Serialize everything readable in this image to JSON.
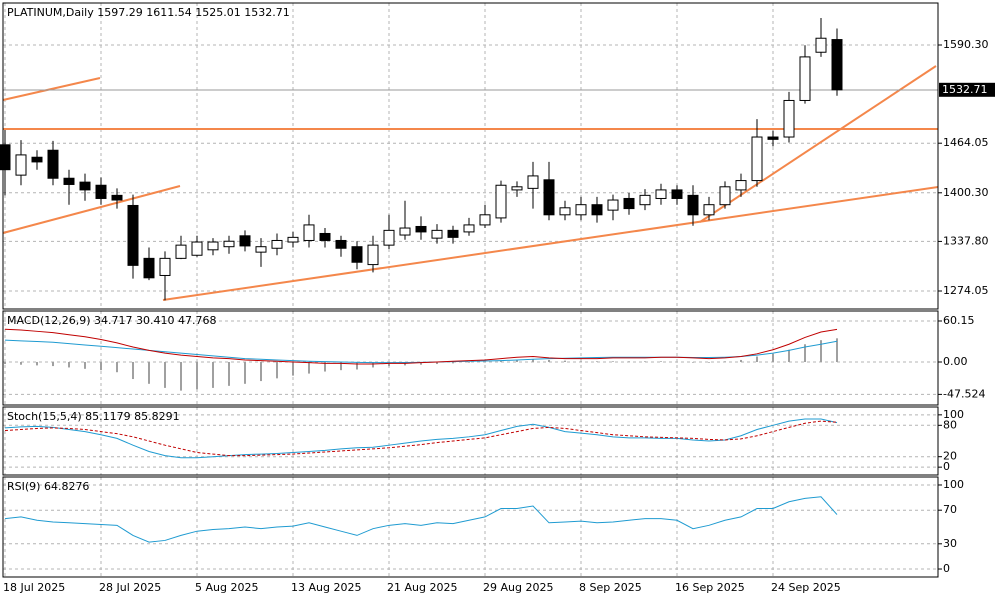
{
  "chart_data": [
    {
      "type": "candlestick",
      "title": "PLATINUM,Daily  1597.29 1611.54 1525.01 1532.71",
      "categories": [
        "18 Jul 2025",
        null,
        null,
        null,
        null,
        null,
        "28 Jul 2025",
        null,
        null,
        null,
        null,
        null,
        "5 Aug 2025",
        null,
        null,
        null,
        null,
        null,
        "13 Aug 2025",
        null,
        null,
        null,
        null,
        null,
        "21 Aug 2025",
        null,
        null,
        null,
        null,
        null,
        "29 Aug 2025",
        null,
        null,
        null,
        null,
        null,
        "8 Sep 2025",
        null,
        null,
        null,
        null,
        null,
        "16 Sep 2025",
        null,
        null,
        null,
        null,
        null,
        "24 Sep 2025",
        null,
        null,
        null,
        null
      ],
      "open": [
        1462,
        1423,
        1446,
        1455,
        1419,
        1414,
        1410,
        1397,
        1384,
        1316,
        1294,
        1316,
        1320,
        1327,
        1331,
        1345,
        1324,
        1329,
        1337,
        1339,
        1348,
        1339,
        1331,
        1308,
        1333,
        1346,
        1357,
        1342,
        1352,
        1350,
        1359,
        1368,
        1404,
        1406,
        1417,
        1372,
        1372,
        1385,
        1378,
        1393,
        1385,
        1393,
        1404,
        1397,
        1372,
        1385,
        1404,
        1416,
        1472,
        1472,
        1519,
        1581,
        1597.29
      ],
      "high": [
        1481,
        1468,
        1455,
        1467,
        1430,
        1425,
        1420,
        1406,
        1398,
        1330,
        1325,
        1345,
        1345,
        1342,
        1345,
        1352,
        1342,
        1348,
        1350,
        1372,
        1355,
        1345,
        1338,
        1345,
        1372,
        1390,
        1370,
        1360,
        1358,
        1368,
        1385,
        1416,
        1415,
        1440,
        1440,
        1390,
        1395,
        1395,
        1398,
        1400,
        1405,
        1412,
        1410,
        1410,
        1395,
        1415,
        1425,
        1495,
        1480,
        1530,
        1590,
        1625,
        1611.54
      ],
      "low": [
        1397,
        1410,
        1430,
        1410,
        1385,
        1390,
        1385,
        1380,
        1290,
        1288,
        1262,
        1315,
        1318,
        1320,
        1322,
        1325,
        1305,
        1320,
        1330,
        1330,
        1330,
        1318,
        1302,
        1298,
        1328,
        1340,
        1340,
        1335,
        1335,
        1345,
        1355,
        1362,
        1395,
        1380,
        1365,
        1365,
        1365,
        1362,
        1365,
        1372,
        1378,
        1385,
        1385,
        1358,
        1365,
        1380,
        1395,
        1408,
        1460,
        1465,
        1515,
        1575,
        1525.01
      ],
      "close": [
        1430,
        1449,
        1440,
        1419,
        1411,
        1404,
        1393,
        1391,
        1307,
        1291,
        1316,
        1333,
        1337,
        1337,
        1338,
        1332,
        1331,
        1339,
        1343,
        1359,
        1339,
        1329,
        1311,
        1333,
        1352,
        1355,
        1350,
        1352,
        1343,
        1359,
        1372,
        1410,
        1408,
        1422,
        1372,
        1381,
        1385,
        1372,
        1391,
        1380,
        1397,
        1404,
        1393,
        1372,
        1385,
        1408,
        1416,
        1472,
        1469,
        1519,
        1575,
        1599,
        1532.71
      ],
      "ylim": [
        1250.9,
        1644.3
      ],
      "yticks": [
        {
          "value": 1590.3,
          "label": "1590.30"
        },
        1464.05,
        {
          "value": 1400.3,
          "label": "1400.30"
        },
        {
          "value": 1337.8,
          "label": "1337.80"
        },
        1274.05
      ],
      "grid": true,
      "up_color": "#ffffff",
      "down_color": "#000000"
    },
    {
      "type": "macd",
      "title": "MACD(12,26,9) 34.717 30.410 47.768",
      "histogram": {
        "color": "#a0a0a0",
        "values": [
          -3,
          -4,
          -5,
          -6,
          -8,
          -10,
          -12,
          -15,
          -25,
          -32,
          -38,
          -42,
          -40,
          -38,
          -35,
          -32,
          -28,
          -24,
          -20,
          -17,
          -14,
          -12,
          -11,
          -8,
          -6,
          -5,
          -4,
          -3,
          -2,
          -1,
          0,
          2,
          3,
          4,
          3,
          2,
          1,
          1,
          1,
          1,
          1,
          1,
          0,
          -1,
          -1,
          1,
          3,
          8,
          12,
          18,
          26,
          32,
          34.717
        ]
      },
      "series": [
        {
          "color": "#1f9bd1",
          "values": [
            32,
            31,
            30,
            29,
            27,
            25,
            23,
            21,
            19,
            17,
            15,
            13,
            11,
            9,
            7,
            5,
            4,
            3,
            2,
            1,
            0.5,
            0,
            -0.5,
            -1,
            -1,
            -0.8,
            -0.5,
            0,
            0.5,
            1,
            1.5,
            2,
            3,
            4,
            5,
            5.5,
            6,
            6.5,
            7,
            7,
            7,
            7,
            7,
            6.5,
            6.5,
            7,
            8,
            10,
            13,
            17,
            22,
            26,
            30.41
          ]
        },
        {
          "color": "#c00000",
          "values": [
            48,
            47,
            45,
            43,
            40,
            37,
            33,
            28,
            22,
            17,
            13,
            10,
            8,
            6,
            5,
            3,
            2,
            1,
            0,
            -1,
            -2,
            -2,
            -3,
            -3,
            -2,
            -2,
            -1,
            0,
            1,
            2,
            3,
            5,
            7,
            8,
            6,
            5,
            5,
            5,
            6,
            6,
            6,
            7,
            7,
            6,
            5,
            6,
            8,
            12,
            18,
            26,
            36,
            44,
            47.768
          ]
        }
      ],
      "ylim": [
        -63.1,
        74.8
      ],
      "yticks": [
        60.15,
        {
          "value": 0,
          "label": "0.00"
        },
        -47.524
      ],
      "grid": true
    },
    {
      "type": "line",
      "title": "Stoch(15,5,4) 85.1179 85.8291",
      "series": [
        {
          "color": "#1f9bd1",
          "dash": false,
          "values": [
            75,
            77,
            78,
            76,
            72,
            68,
            62,
            55,
            42,
            30,
            22,
            18,
            18,
            20,
            22,
            24,
            25,
            26,
            28,
            30,
            32,
            35,
            37,
            38,
            42,
            46,
            50,
            53,
            55,
            58,
            62,
            70,
            78,
            82,
            76,
            68,
            65,
            62,
            58,
            56,
            56,
            55,
            55,
            52,
            50,
            52,
            60,
            72,
            80,
            88,
            92,
            92,
            85.1179
          ]
        },
        {
          "color": "#c00000",
          "dash": true,
          "values": [
            70,
            72,
            74,
            75,
            74,
            72,
            68,
            64,
            58,
            50,
            42,
            35,
            28,
            25,
            22,
            22,
            23,
            24,
            25,
            27,
            29,
            31,
            33,
            35,
            37,
            40,
            43,
            47,
            50,
            53,
            56,
            62,
            68,
            74,
            76,
            74,
            70,
            66,
            62,
            60,
            58,
            57,
            56,
            55,
            53,
            52,
            54,
            60,
            68,
            76,
            84,
            88,
            85.8291
          ]
        }
      ],
      "ylim": [
        -15,
        115
      ],
      "yticks": [
        100,
        80,
        20,
        0
      ],
      "grid": true
    },
    {
      "type": "line",
      "title": "RSI(9) 64.8276",
      "series": [
        {
          "color": "#1f9bd1",
          "dash": false,
          "values": [
            60,
            62,
            58,
            56,
            55,
            54,
            53,
            52,
            40,
            32,
            34,
            40,
            45,
            47,
            48,
            50,
            48,
            50,
            51,
            55,
            50,
            45,
            40,
            48,
            52,
            54,
            52,
            55,
            54,
            58,
            62,
            72,
            72,
            75,
            55,
            56,
            57,
            55,
            56,
            58,
            60,
            60,
            58,
            48,
            52,
            58,
            62,
            72,
            72,
            80,
            84,
            86,
            64.8276
          ]
        }
      ],
      "ylim": [
        -9.5,
        109.5
      ],
      "yticks": [
        100,
        70,
        30,
        0
      ],
      "grid": true
    }
  ]
}
